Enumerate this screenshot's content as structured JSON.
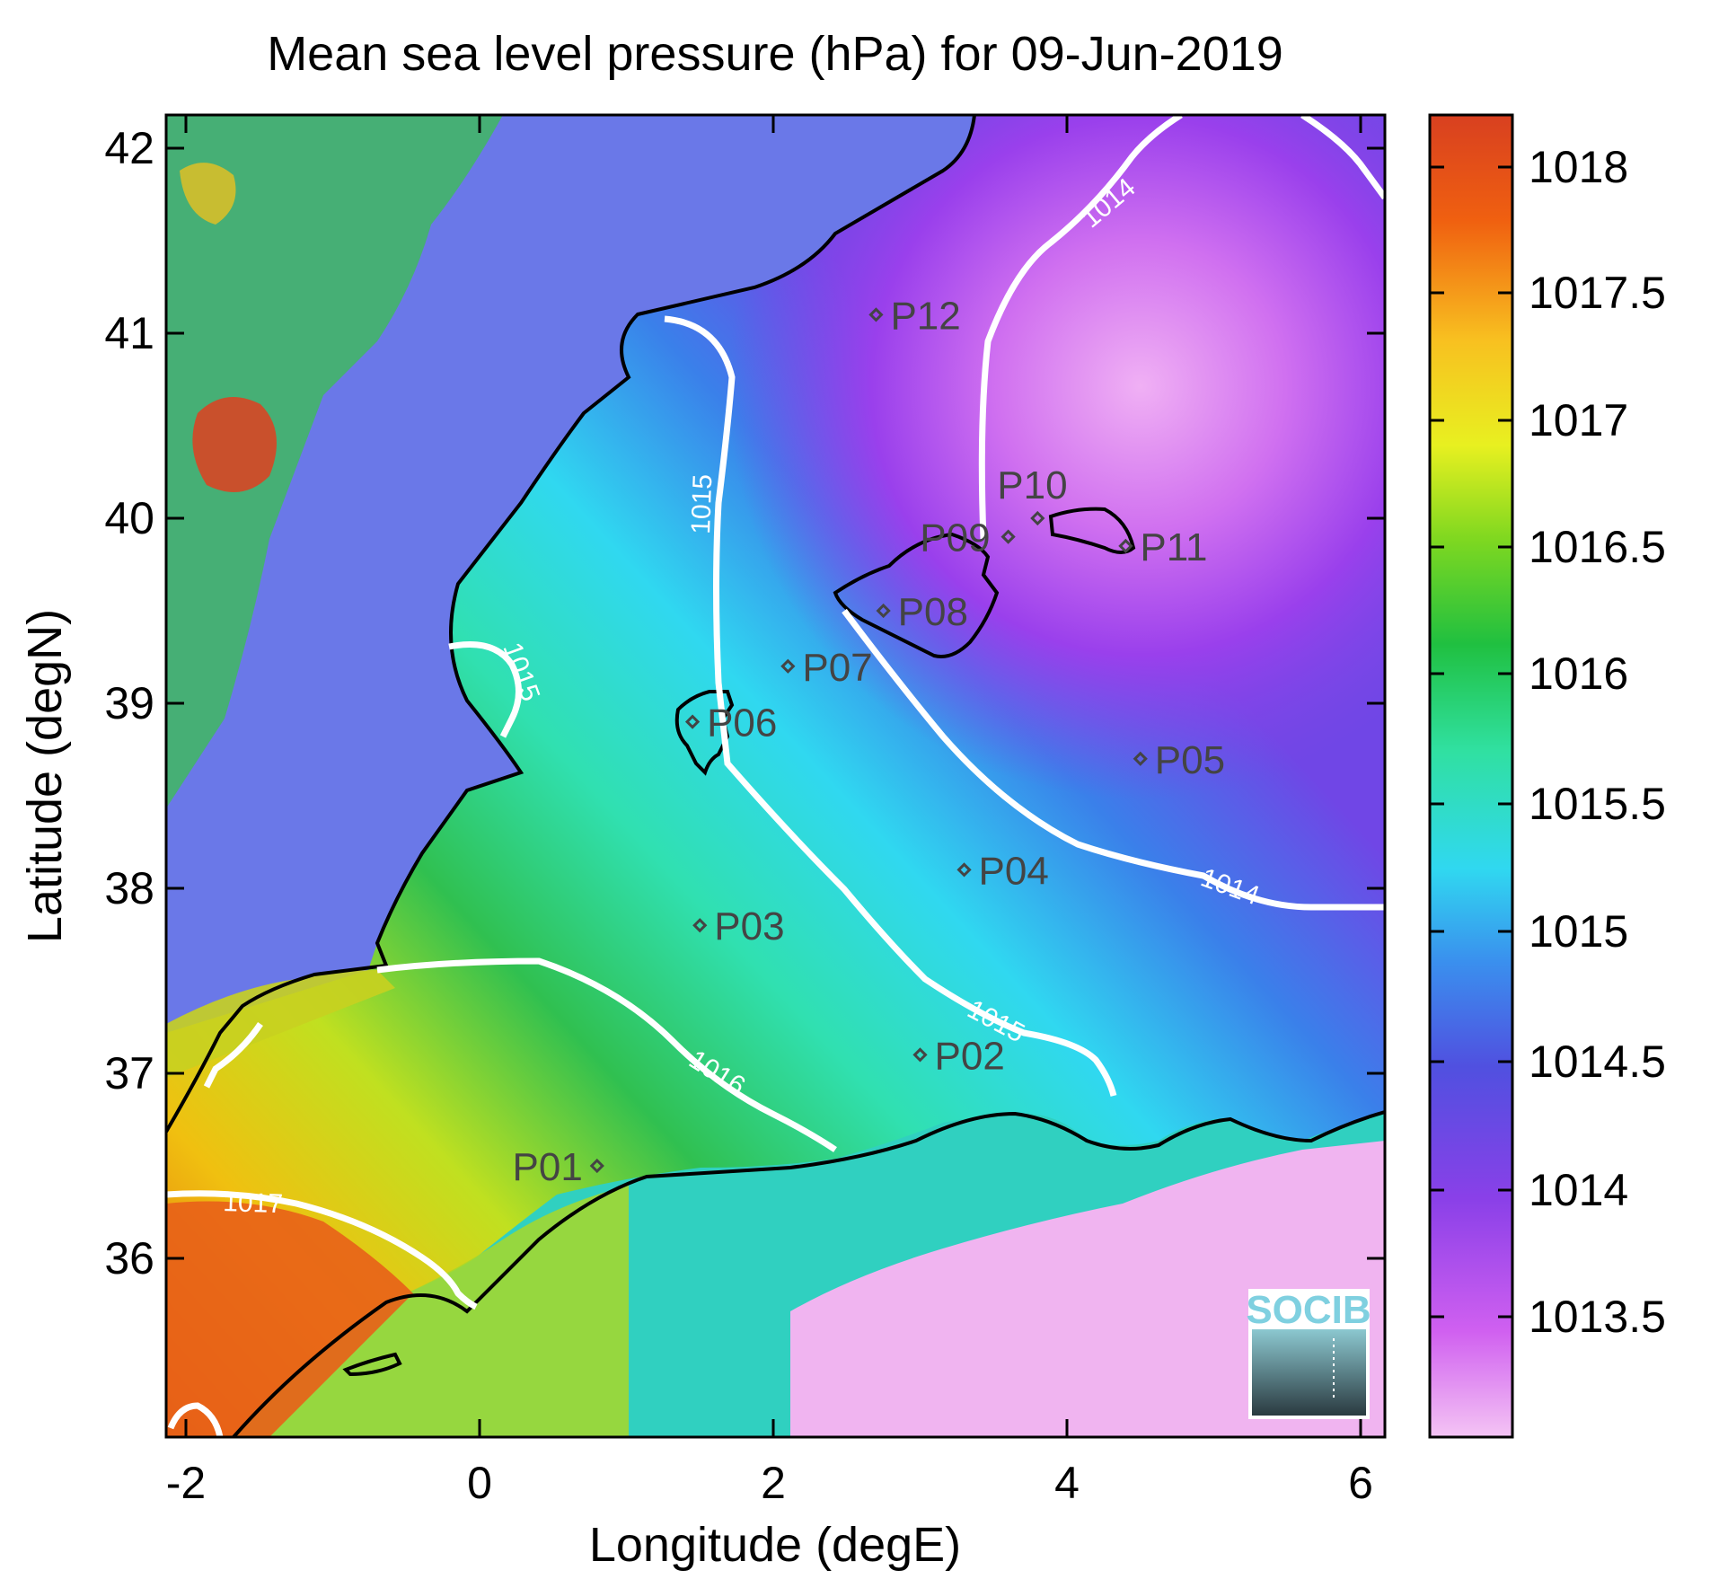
{
  "title": "Mean sea level pressure (hPa) for 09-Jun-2019",
  "xlabel": "Longitude (degE)",
  "ylabel": "Latitude (degN)",
  "x_ticks": [
    "-2",
    "0",
    "2",
    "4",
    "6"
  ],
  "y_ticks": [
    "42",
    "41",
    "40",
    "39",
    "38",
    "37",
    "36"
  ],
  "colorbar": {
    "ticks": [
      "1018",
      "1017.5",
      "1017",
      "1016.5",
      "1016",
      "1015.5",
      "1015",
      "1014.5",
      "1014",
      "1013.5"
    ],
    "colors": [
      "#f0b0f0",
      "#c040f0",
      "#7040e0",
      "#3060e0",
      "#30d0f0",
      "#30e0a0",
      "#20c040",
      "#a0e020",
      "#f0f020",
      "#f0a020",
      "#e04020"
    ]
  },
  "contour_labels": [
    "1014",
    "1014",
    "1015",
    "1015",
    "1015",
    "1016",
    "1017"
  ],
  "stations": [
    {
      "name": "P01",
      "lon": 0.8,
      "lat": 36.5
    },
    {
      "name": "P02",
      "lon": 3.0,
      "lat": 37.1
    },
    {
      "name": "P03",
      "lon": 1.5,
      "lat": 37.8
    },
    {
      "name": "P04",
      "lon": 3.3,
      "lat": 38.1
    },
    {
      "name": "P05",
      "lon": 4.5,
      "lat": 38.7
    },
    {
      "name": "P06",
      "lon": 1.45,
      "lat": 38.9
    },
    {
      "name": "P07",
      "lon": 2.1,
      "lat": 39.2
    },
    {
      "name": "P08",
      "lon": 2.75,
      "lat": 39.5
    },
    {
      "name": "P09",
      "lon": 3.6,
      "lat": 39.9
    },
    {
      "name": "P10",
      "lon": 3.8,
      "lat": 40.0
    },
    {
      "name": "P11",
      "lon": 4.4,
      "lat": 39.85
    },
    {
      "name": "P12",
      "lon": 2.7,
      "lat": 41.1
    }
  ],
  "logo": {
    "text": "SOCIB"
  }
}
